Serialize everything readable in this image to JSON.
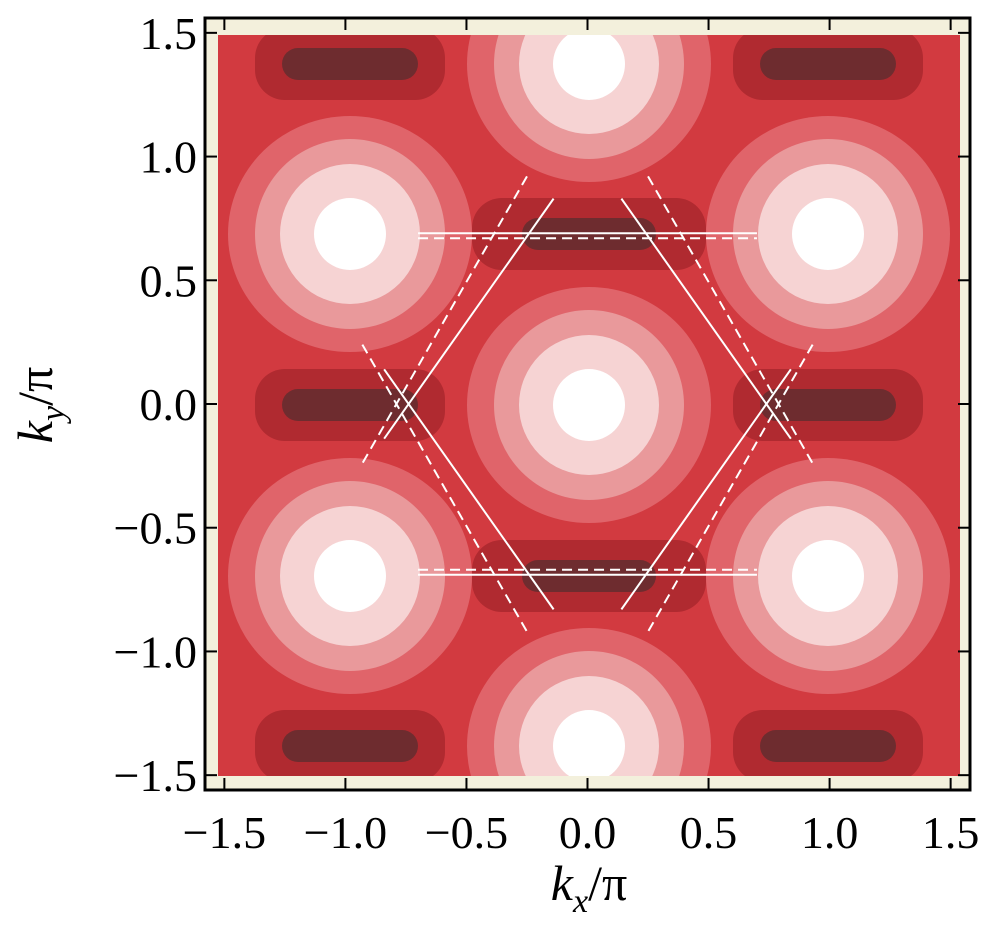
{
  "chart_data": {
    "type": "contour",
    "xlabel": {
      "main": "k",
      "sub": "x",
      "tail": "/π"
    },
    "ylabel": {
      "main": "k",
      "sub": "y",
      "tail": "/π"
    },
    "xlim": [
      -1.58,
      1.58
    ],
    "ylim": [
      -1.56,
      1.56
    ],
    "xticks": [
      {
        "value": -1.5,
        "label": "−1.5"
      },
      {
        "value": -1.0,
        "label": "−1.0"
      },
      {
        "value": -0.5,
        "label": "−0.5"
      },
      {
        "value": 0,
        "label": "0.0"
      },
      0.5,
      {
        "value": 1.0,
        "label": "1.0"
      },
      1.5
    ],
    "yticks": [
      {
        "value": -1.5,
        "label": "−1.5"
      },
      {
        "value": -1.0,
        "label": "−1.0"
      },
      {
        "value": -0.5,
        "label": "−0.5"
      },
      {
        "value": 0,
        "label": "0.0"
      },
      0.5,
      {
        "value": 1.0,
        "label": "1.0"
      },
      1.5
    ],
    "series": [
      {
        "color": "#ffffff",
        "dashed": false,
        "x": [
          -0.7,
          0.7,
          null,
          -0.7,
          0.7,
          null,
          0.14,
          0.84,
          null,
          0.84,
          0.14,
          null,
          -0.14,
          -0.84,
          null,
          -0.84,
          -0.14
        ],
        "y": [
          0.69,
          0.69,
          null,
          -0.69,
          -0.69,
          null,
          0.83,
          -0.14,
          null,
          0.14,
          -0.83,
          null,
          0.83,
          -0.14,
          null,
          0.14,
          -0.83
        ]
      },
      {
        "color": "#ffffff",
        "dashed": true,
        "x": [
          -0.7,
          0.7,
          null,
          -0.7,
          0.7,
          null,
          0.25,
          0.93,
          null,
          0.93,
          0.25,
          null,
          -0.25,
          -0.93,
          null,
          -0.93,
          -0.25
        ],
        "y": [
          0.67,
          0.67,
          null,
          -0.67,
          -0.67,
          null,
          0.92,
          -0.24,
          null,
          0.24,
          -0.92,
          null,
          0.92,
          -0.24,
          null,
          0.24,
          -0.92
        ]
      }
    ]
  }
}
